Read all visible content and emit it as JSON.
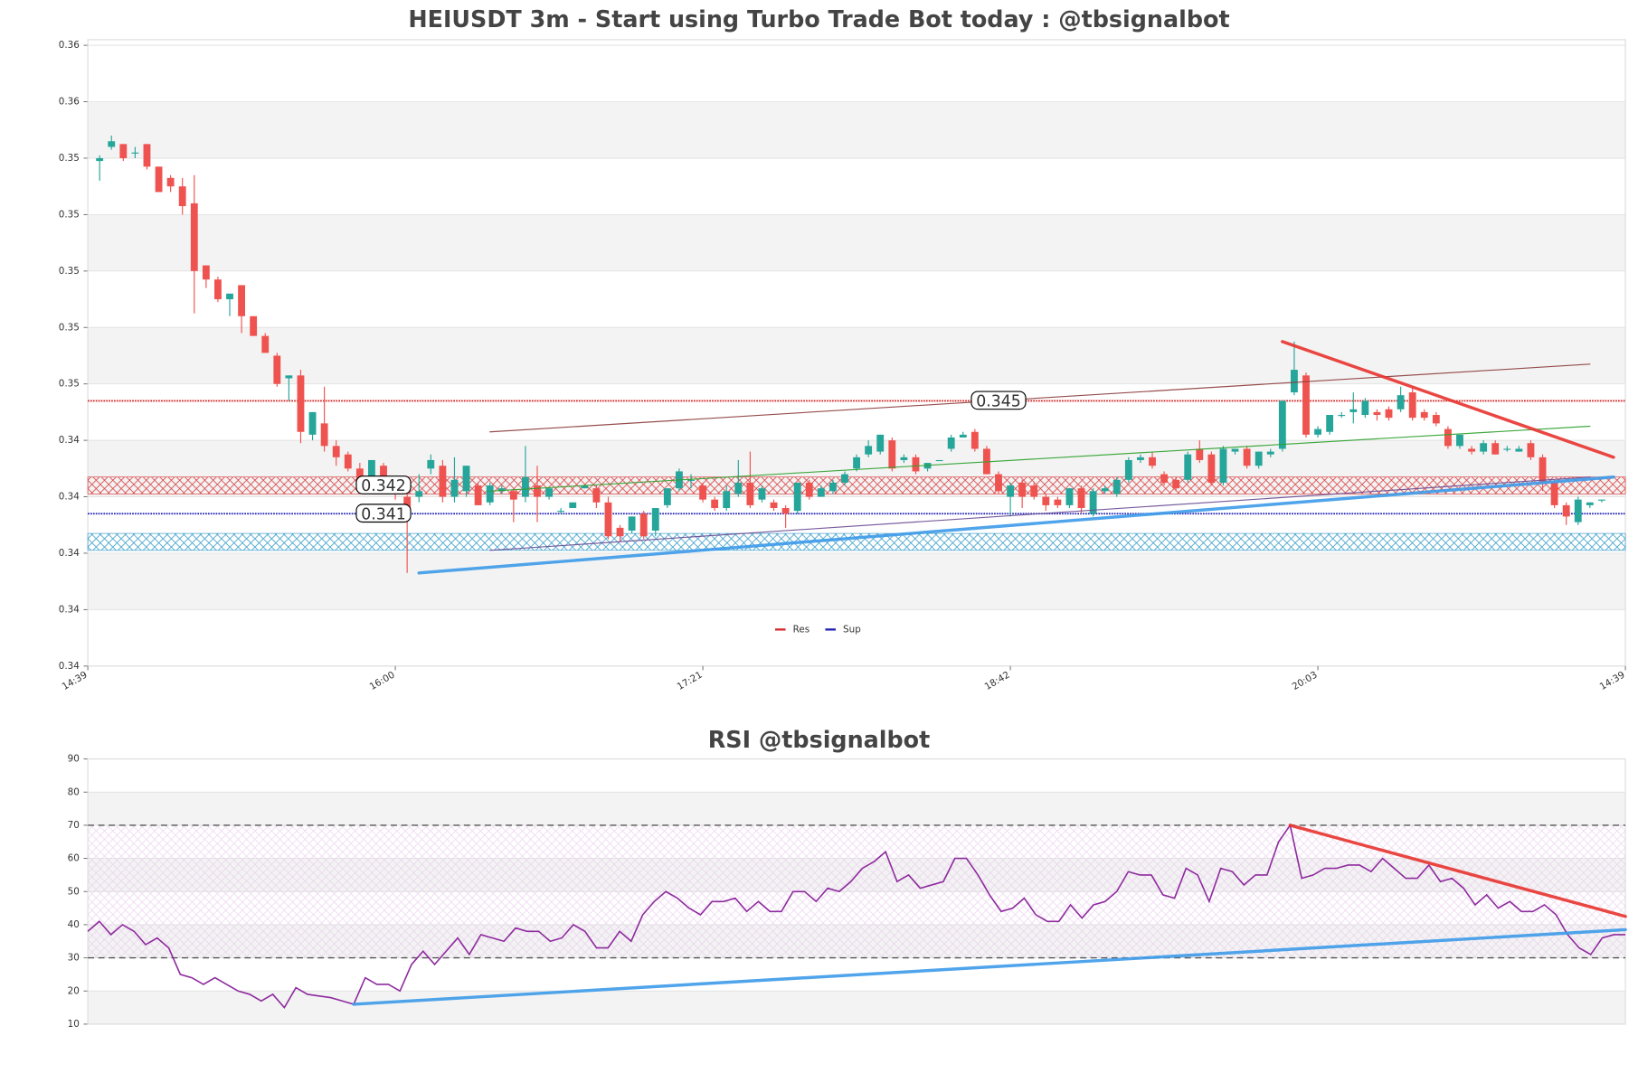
{
  "chart_data": [
    {
      "type": "candlestick",
      "title": "HEIUSDT 3m - Start using Turbo Trade Bot today : @tbsignalbot",
      "up_color": "#26a69a",
      "down_color": "#ef5350",
      "xlim": [
        -1,
        129
      ],
      "xticks": [
        {
          "value": -1,
          "label": "14:39"
        },
        {
          "value": 25,
          "label": "16:00"
        },
        {
          "value": 51,
          "label": "17:21"
        },
        {
          "value": 77,
          "label": "18:42"
        },
        {
          "value": 103,
          "label": "20:03"
        },
        {
          "value": 129,
          "label": "14:39"
        }
      ],
      "ylim": [
        0.3356,
        0.3578
      ],
      "yticks": [
        {
          "value": 0.3356,
          "label": "0.34"
        },
        {
          "value": 0.3376,
          "label": "0.34"
        },
        {
          "value": 0.3396,
          "label": "0.34"
        },
        {
          "value": 0.3416,
          "label": "0.34"
        },
        {
          "value": 0.3436,
          "label": "0.34"
        },
        {
          "value": 0.3456,
          "label": "0.35"
        },
        {
          "value": 0.3476,
          "label": "0.35"
        },
        {
          "value": 0.3496,
          "label": "0.35"
        },
        {
          "value": 0.3516,
          "label": "0.35"
        },
        {
          "value": 0.3536,
          "label": "0.35"
        },
        {
          "value": 0.3556,
          "label": "0.36"
        },
        {
          "value": 0.3576,
          "label": "0.36"
        }
      ],
      "candles": [
        [
          0.3535,
          0.3537,
          0.3528,
          0.3536
        ],
        [
          0.354,
          0.3544,
          0.3539,
          0.3542
        ],
        [
          0.3541,
          0.3541,
          0.3535,
          0.3536
        ],
        [
          0.3538,
          0.354,
          0.3536,
          0.3538
        ],
        [
          0.3541,
          0.3541,
          0.3532,
          0.3533
        ],
        [
          0.3533,
          0.3533,
          0.3524,
          0.3524
        ],
        [
          0.3529,
          0.353,
          0.3524,
          0.3526
        ],
        [
          0.3526,
          0.3529,
          0.3516,
          0.3519
        ],
        [
          0.352,
          0.353,
          0.3481,
          0.3496
        ],
        [
          0.3498,
          0.3498,
          0.349,
          0.3493
        ],
        [
          0.3493,
          0.3494,
          0.3485,
          0.3486
        ],
        [
          0.3486,
          0.3488,
          0.348,
          0.3488
        ],
        [
          0.3491,
          0.3491,
          0.3474,
          0.348
        ],
        [
          0.348,
          0.348,
          0.3473,
          0.3473
        ],
        [
          0.3473,
          0.3474,
          0.3467,
          0.3467
        ],
        [
          0.3466,
          0.3467,
          0.3455,
          0.3456
        ],
        [
          0.3458,
          0.3459,
          0.345,
          0.3459
        ],
        [
          0.3459,
          0.3461,
          0.3435,
          0.3439
        ],
        [
          0.3438,
          0.3446,
          0.3436,
          0.3446
        ],
        [
          0.3442,
          0.3455,
          0.3432,
          0.3434
        ],
        [
          0.3434,
          0.3436,
          0.3427,
          0.343
        ],
        [
          0.3431,
          0.3432,
          0.3425,
          0.3426
        ],
        [
          0.3426,
          0.3428,
          0.3419,
          0.342
        ],
        [
          0.3421,
          0.3429,
          0.342,
          0.3429
        ],
        [
          0.3427,
          0.3428,
          0.342,
          0.3421
        ],
        [
          0.3422,
          0.3423,
          0.3415,
          0.3418
        ],
        [
          0.3416,
          0.3418,
          0.3389,
          0.3411
        ],
        [
          0.3416,
          0.3424,
          0.3414,
          0.3418
        ],
        [
          0.3426,
          0.3431,
          0.3424,
          0.3429
        ],
        [
          0.3427,
          0.3429,
          0.3414,
          0.3416
        ],
        [
          0.3416,
          0.343,
          0.3414,
          0.3422
        ],
        [
          0.3418,
          0.3427,
          0.3416,
          0.3427
        ],
        [
          0.342,
          0.3421,
          0.3413,
          0.3413
        ],
        [
          0.3414,
          0.3421,
          0.3413,
          0.342
        ],
        [
          0.3418,
          0.342,
          0.3417,
          0.3419
        ],
        [
          0.3418,
          0.3419,
          0.3407,
          0.3415
        ],
        [
          0.3416,
          0.3434,
          0.3414,
          0.3423
        ],
        [
          0.342,
          0.3427,
          0.3407,
          0.3416
        ],
        [
          0.3416,
          0.3419,
          0.3415,
          0.3419
        ],
        [
          0.3411,
          0.3412,
          0.341,
          0.3411
        ],
        [
          0.3412,
          0.3414,
          0.3412,
          0.3414
        ],
        [
          0.3419,
          0.342,
          0.3419,
          0.342
        ],
        [
          0.3419,
          0.342,
          0.3412,
          0.3414
        ],
        [
          0.3414,
          0.3416,
          0.3401,
          0.3402
        ],
        [
          0.3405,
          0.3406,
          0.34,
          0.3402
        ],
        [
          0.3404,
          0.3409,
          0.3403,
          0.3409
        ],
        [
          0.341,
          0.3411,
          0.3401,
          0.3402
        ],
        [
          0.3404,
          0.3412,
          0.3402,
          0.3412
        ],
        [
          0.3413,
          0.3419,
          0.3412,
          0.3419
        ],
        [
          0.3419,
          0.3426,
          0.3418,
          0.3425
        ],
        [
          0.3422,
          0.3424,
          0.3419,
          0.3422
        ],
        [
          0.342,
          0.3421,
          0.3414,
          0.3415
        ],
        [
          0.3415,
          0.3416,
          0.3411,
          0.3412
        ],
        [
          0.3412,
          0.342,
          0.3411,
          0.3418
        ],
        [
          0.3417,
          0.3429,
          0.3416,
          0.3421
        ],
        [
          0.3421,
          0.3432,
          0.3412,
          0.3413
        ],
        [
          0.3415,
          0.342,
          0.3414,
          0.3419
        ],
        [
          0.3414,
          0.3415,
          0.3411,
          0.3412
        ],
        [
          0.3412,
          0.3413,
          0.3405,
          0.341
        ],
        [
          0.3411,
          0.3421,
          0.341,
          0.3421
        ],
        [
          0.3421,
          0.3422,
          0.3415,
          0.3416
        ],
        [
          0.3416,
          0.342,
          0.3416,
          0.3419
        ],
        [
          0.3418,
          0.3422,
          0.3417,
          0.3421
        ],
        [
          0.3421,
          0.3425,
          0.342,
          0.3424
        ],
        [
          0.3426,
          0.3431,
          0.3425,
          0.343
        ],
        [
          0.3431,
          0.3436,
          0.343,
          0.3434
        ],
        [
          0.3432,
          0.3438,
          0.3431,
          0.3438
        ],
        [
          0.3436,
          0.3437,
          0.3425,
          0.3426
        ],
        [
          0.3429,
          0.3431,
          0.3428,
          0.343
        ],
        [
          0.343,
          0.3431,
          0.3424,
          0.3425
        ],
        [
          0.3426,
          0.3428,
          0.3425,
          0.3428
        ],
        [
          0.3429,
          0.3429,
          0.3429,
          0.3429
        ],
        [
          0.3433,
          0.3438,
          0.3432,
          0.3437
        ],
        [
          0.3437,
          0.3439,
          0.3437,
          0.3438
        ],
        [
          0.3439,
          0.344,
          0.3432,
          0.3433
        ],
        [
          0.3433,
          0.3434,
          0.3424,
          0.3424
        ],
        [
          0.3424,
          0.3425,
          0.3417,
          0.3418
        ],
        [
          0.3416,
          0.3421,
          0.3409,
          0.342
        ],
        [
          0.3421,
          0.3422,
          0.3412,
          0.3416
        ],
        [
          0.342,
          0.3421,
          0.3415,
          0.3416
        ],
        [
          0.3416,
          0.3417,
          0.3411,
          0.3413
        ],
        [
          0.3415,
          0.3416,
          0.3412,
          0.3413
        ],
        [
          0.3413,
          0.3419,
          0.3412,
          0.3419
        ],
        [
          0.3419,
          0.342,
          0.341,
          0.3412
        ],
        [
          0.341,
          0.3419,
          0.3409,
          0.3418
        ],
        [
          0.3418,
          0.342,
          0.3417,
          0.3419
        ],
        [
          0.3417,
          0.3423,
          0.3416,
          0.3422
        ],
        [
          0.3422,
          0.343,
          0.3421,
          0.3429
        ],
        [
          0.3429,
          0.3431,
          0.3428,
          0.343
        ],
        [
          0.343,
          0.3432,
          0.3426,
          0.3427
        ],
        [
          0.3424,
          0.3425,
          0.342,
          0.3421
        ],
        [
          0.3422,
          0.3423,
          0.3418,
          0.3419
        ],
        [
          0.3422,
          0.3432,
          0.3421,
          0.3431
        ],
        [
          0.3433,
          0.3436,
          0.3428,
          0.3429
        ],
        [
          0.3431,
          0.3432,
          0.342,
          0.3421
        ],
        [
          0.3421,
          0.3434,
          0.342,
          0.3433
        ],
        [
          0.3432,
          0.3433,
          0.3431,
          0.3433
        ],
        [
          0.3433,
          0.3434,
          0.3426,
          0.3427
        ],
        [
          0.3427,
          0.3432,
          0.3426,
          0.3432
        ],
        [
          0.3431,
          0.3433,
          0.343,
          0.3432
        ],
        [
          0.3433,
          0.345,
          0.3432,
          0.345
        ],
        [
          0.3453,
          0.3471,
          0.3452,
          0.3461
        ],
        [
          0.3459,
          0.346,
          0.3437,
          0.3438
        ],
        [
          0.3438,
          0.3441,
          0.3437,
          0.344
        ],
        [
          0.3439,
          0.3445,
          0.3438,
          0.3445
        ],
        [
          0.3445,
          0.3446,
          0.3444,
          0.3445
        ],
        [
          0.3446,
          0.3453,
          0.3442,
          0.3447
        ],
        [
          0.3445,
          0.3451,
          0.3444,
          0.345
        ],
        [
          0.3446,
          0.3447,
          0.3443,
          0.3445
        ],
        [
          0.3447,
          0.3448,
          0.3443,
          0.3444
        ],
        [
          0.3447,
          0.3455,
          0.3446,
          0.3452
        ],
        [
          0.3453,
          0.3455,
          0.3443,
          0.3444
        ],
        [
          0.3446,
          0.3447,
          0.3443,
          0.3444
        ],
        [
          0.3445,
          0.3446,
          0.3441,
          0.3442
        ],
        [
          0.344,
          0.3441,
          0.3433,
          0.3434
        ],
        [
          0.3434,
          0.3438,
          0.3433,
          0.3438
        ],
        [
          0.3433,
          0.3434,
          0.3431,
          0.3432
        ],
        [
          0.3432,
          0.3436,
          0.3431,
          0.3435
        ],
        [
          0.3435,
          0.3436,
          0.3431,
          0.3431
        ],
        [
          0.3433,
          0.3434,
          0.3432,
          0.3433
        ],
        [
          0.3432,
          0.3434,
          0.3432,
          0.3433
        ],
        [
          0.3435,
          0.3436,
          0.3429,
          0.343
        ],
        [
          0.343,
          0.3431,
          0.3418,
          0.3421
        ],
        [
          0.3421,
          0.3422,
          0.3412,
          0.3413
        ],
        [
          0.3413,
          0.3414,
          0.3406,
          0.3409
        ],
        [
          0.3407,
          0.3416,
          0.3406,
          0.3415
        ],
        [
          0.3413,
          0.3414,
          0.3412,
          0.3414
        ],
        [
          0.3415,
          0.3415,
          0.3414,
          0.3415
        ]
      ],
      "hlines": [
        {
          "name": "Res",
          "value": 0.345,
          "color": "#d62728"
        },
        {
          "name": "Sup",
          "value": 0.341,
          "color": "#1f1fb4"
        }
      ],
      "zones": [
        {
          "value": 0.342,
          "low": 0.3417,
          "high": 0.3423,
          "color": "#d62728"
        },
        {
          "low": 0.3397,
          "high": 0.3403,
          "color": "#1f8fc0"
        }
      ],
      "trendlines": [
        {
          "from": [
            33,
            0.3439
          ],
          "to": [
            126,
            0.3463
          ],
          "color": "#8b3a3a",
          "width": 1
        },
        {
          "from": [
            33,
            0.3418
          ],
          "to": [
            126,
            0.3441
          ],
          "color": "#2ca02c",
          "width": 1
        },
        {
          "from": [
            33,
            0.3397
          ],
          "to": [
            126,
            0.3423
          ],
          "color": "#6a4c93",
          "width": 1
        },
        {
          "from": [
            27,
            0.3389
          ],
          "to": [
            128,
            0.3423
          ],
          "color": "#3d9be9",
          "width": 3
        },
        {
          "from": [
            100,
            0.3471
          ],
          "to": [
            128,
            0.343
          ],
          "color": "#e8332e",
          "width": 3
        }
      ]
    },
    {
      "type": "line",
      "title": "RSI @tbsignalbot",
      "color": "#8e2b9e",
      "ylim": [
        10,
        90
      ],
      "yticks": [
        10,
        20,
        30,
        40,
        50,
        60,
        70,
        80,
        90
      ],
      "values": [
        38,
        41,
        37,
        40,
        38,
        34,
        36,
        33,
        25,
        24,
        22,
        24,
        22,
        20,
        19,
        17,
        19,
        15,
        21,
        19,
        18.5,
        18,
        17,
        16,
        24,
        22,
        22,
        20,
        28,
        32,
        28,
        32,
        36,
        31,
        37,
        36,
        35,
        39,
        38,
        38,
        35,
        36,
        40,
        38,
        33,
        33,
        38,
        35,
        43,
        47,
        50,
        48,
        45,
        43,
        47,
        47,
        48,
        44,
        47,
        44,
        44,
        50,
        50,
        47,
        51,
        50,
        53,
        57,
        59,
        62,
        53,
        55,
        51,
        52,
        53,
        60,
        60,
        55,
        49,
        44,
        45,
        48,
        43,
        41,
        41,
        46,
        42,
        46,
        47,
        50,
        56,
        55,
        55,
        49,
        48,
        57,
        55,
        47,
        57,
        56,
        52,
        55,
        55,
        65,
        70,
        54,
        55,
        57,
        57,
        58,
        58,
        56,
        60,
        57,
        54,
        54,
        58,
        53,
        54,
        51,
        46,
        49,
        45,
        47,
        44,
        44,
        46,
        43,
        37,
        33,
        31,
        36,
        37,
        37
      ],
      "hlines": [
        {
          "value": 70,
          "color": "#555555"
        },
        {
          "value": 30,
          "color": "#555555"
        }
      ],
      "trendlines": [
        {
          "from": [
            104,
            70
          ],
          "to": [
            133,
            42.5
          ],
          "color": "#e8332e",
          "width": 3
        },
        {
          "from": [
            23,
            16
          ],
          "to": [
            133,
            38.5
          ],
          "color": "#3d9be9",
          "width": 3
        }
      ]
    }
  ]
}
